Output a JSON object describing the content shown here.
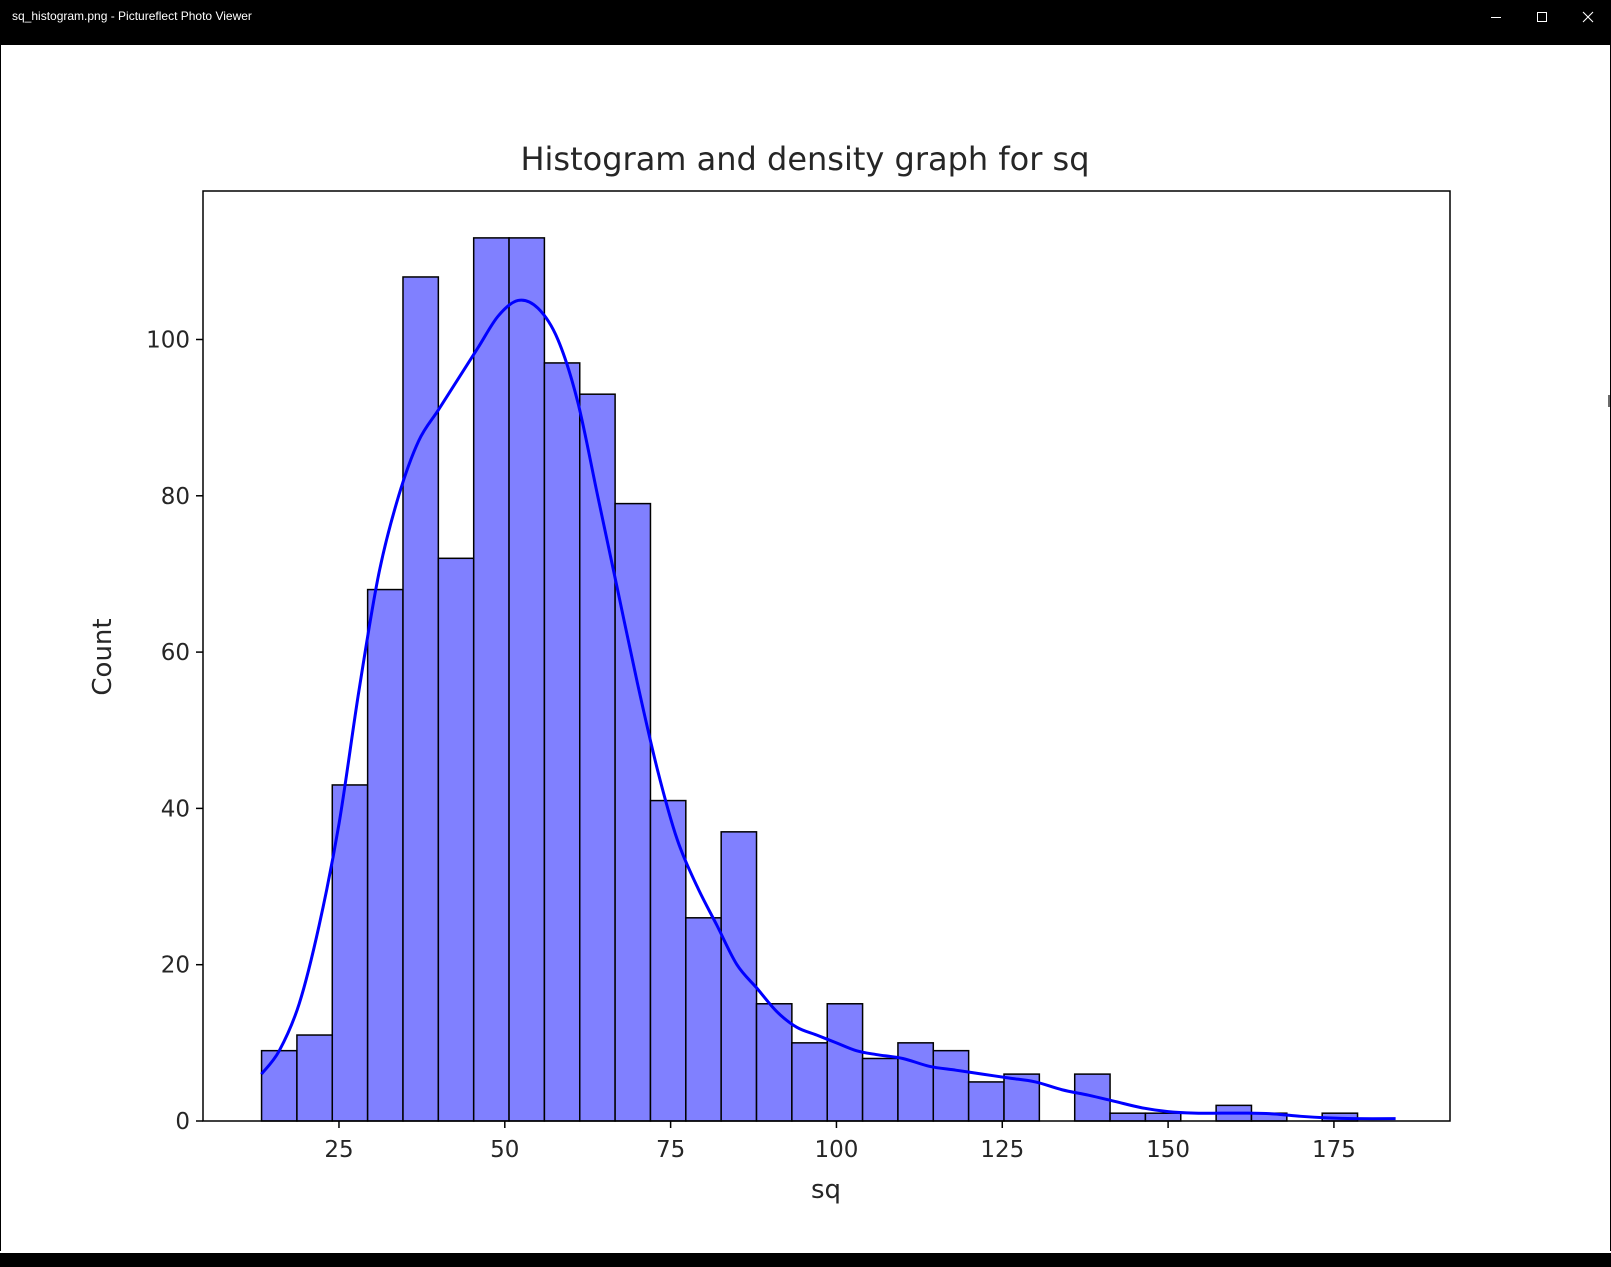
{
  "window": {
    "title": "sq_histogram.png - Pictureflect Photo Viewer",
    "controls": {
      "minimize": "minimize-icon",
      "maximize": "maximize-icon",
      "close": "close-icon"
    }
  },
  "chart_data": {
    "type": "bar",
    "title": "Histogram and density graph for sq",
    "xlabel": "sq",
    "ylabel": "Count",
    "xlim": [
      4.5,
      192.5
    ],
    "ylim": [
      0,
      119
    ],
    "xticks": [
      25,
      50,
      75,
      100,
      125,
      150,
      175
    ],
    "yticks": [
      0,
      20,
      40,
      60,
      80,
      100
    ],
    "grid": false,
    "bar_color": "#8080ff",
    "edge_color": "#000000",
    "bins": {
      "start": 13.33,
      "width": 5.33,
      "counts": [
        9,
        11,
        43,
        68,
        108,
        72,
        113,
        113,
        97,
        93,
        79,
        41,
        26,
        37,
        15,
        10,
        15,
        8,
        10,
        9,
        5,
        6,
        0,
        6,
        1,
        1,
        0,
        2,
        1,
        0,
        1
      ]
    },
    "density": {
      "name": "kde",
      "color": "#0000ff",
      "x": [
        13.3,
        16,
        19,
        22,
        25,
        28,
        31,
        34,
        37,
        40,
        43,
        46,
        49,
        52,
        55,
        58,
        61,
        64,
        67,
        70,
        73,
        76,
        79,
        82,
        85,
        88,
        91,
        94,
        97,
        100,
        103,
        106,
        110,
        114,
        118,
        122,
        126,
        130,
        134,
        138,
        142,
        146,
        150,
        154,
        158,
        162,
        166,
        170,
        174,
        178,
        184.3
      ],
      "y": [
        6,
        9,
        15,
        25,
        38,
        55,
        70,
        80,
        87,
        91,
        95,
        99,
        103,
        105,
        104,
        100,
        92,
        80,
        68,
        56,
        45,
        36,
        30,
        25,
        20,
        17,
        14,
        12,
        11,
        10,
        9,
        8.5,
        8,
        7,
        6.5,
        6,
        5.5,
        5,
        4,
        3.3,
        2.5,
        1.7,
        1.2,
        1,
        1,
        1,
        0.9,
        0.6,
        0.4,
        0.3,
        0.3
      ]
    }
  }
}
